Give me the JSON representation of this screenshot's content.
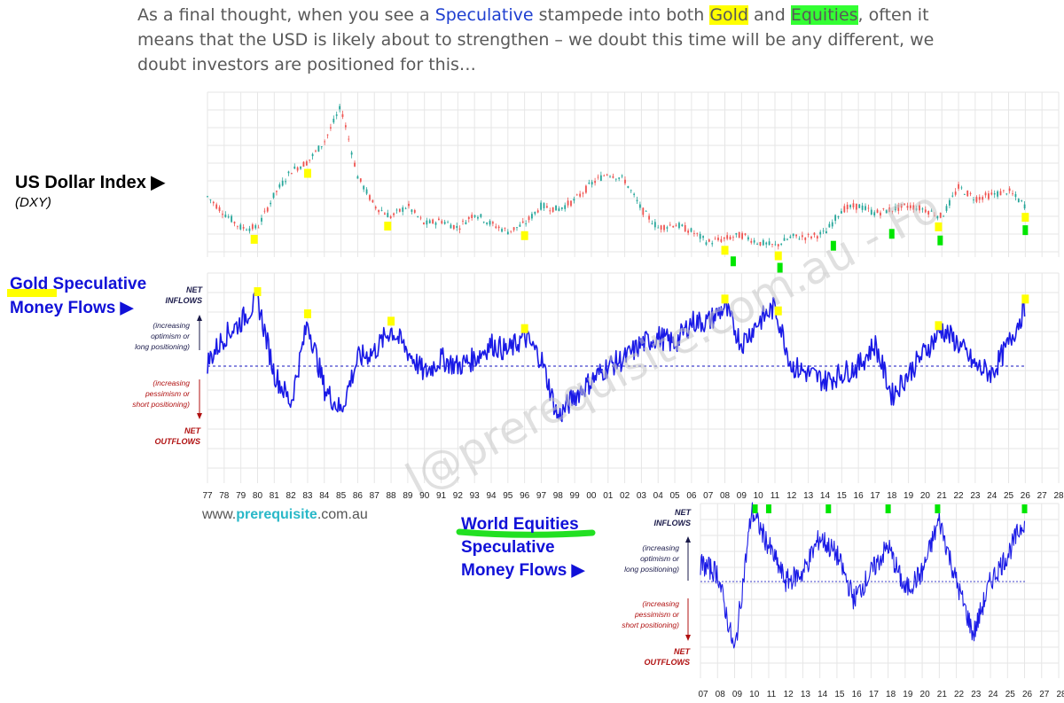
{
  "intro": {
    "t1": "As a final thought, when you see a ",
    "speculative": "Speculative",
    "t2": " stampede into both ",
    "gold": "Gold",
    "t3": " and ",
    "equities": "Equities",
    "t4": ", often it means that the USD is likely about to strengthen – we doubt this time will be any different, we doubt investors are positioned for this…"
  },
  "labels": {
    "dxy_title": "US Dollar Index ▶",
    "dxy_sub": "(DXY)",
    "gold_line1": "Gold Speculative",
    "gold_line2": "Money Flows ▶",
    "eq_line1": "World Equities",
    "eq_line2": "Speculative",
    "eq_line3": "Money Flows ▶",
    "website_pre": "www.",
    "website_bold": "prerequisite",
    "website_post": ".com.au",
    "watermark": "l@prerequisite.com.au - Fo"
  },
  "annotations": {
    "net": "NET",
    "inflows": "INFLOWS",
    "outflows": "OUTFLOWS",
    "opt1": "(increasing",
    "opt2": "optimism or",
    "opt3": "long positioning)",
    "pes1": "(increasing",
    "pes2": "pessimism or",
    "pes3": "short positioning)"
  },
  "colors": {
    "flow_line": "#1a1ae6",
    "dxy_up": "#26a69a",
    "dxy_down": "#ef5350",
    "gold_marker": "#ffff00",
    "equity_marker": "#00e600",
    "zero_line": "#4444cc"
  },
  "chart_data": [
    {
      "type": "line",
      "series_label": "US Dollar Index",
      "x": [
        1977,
        1978,
        1979,
        1980,
        1981,
        1982,
        1983,
        1984,
        1985,
        1986,
        1987,
        1988,
        1989,
        1990,
        1991,
        1992,
        1993,
        1994,
        1995,
        1996,
        1997,
        1998,
        1999,
        2000,
        2001,
        2002,
        2003,
        2004,
        2005,
        2006,
        2007,
        2008,
        2009,
        2010,
        2011,
        2012,
        2013,
        2014,
        2015,
        2016,
        2017,
        2018,
        2019,
        2020,
        2021,
        2022,
        2023,
        2024,
        2025,
        2026
      ],
      "values": [
        103,
        94,
        86,
        86,
        104,
        117,
        122,
        133,
        152,
        114,
        98,
        92,
        98,
        88,
        90,
        86,
        94,
        88,
        84,
        88,
        98,
        96,
        101,
        110,
        116,
        112,
        96,
        86,
        88,
        84,
        78,
        80,
        82,
        78,
        76,
        81,
        81,
        83,
        96,
        98,
        94,
        96,
        98,
        96,
        92,
        108,
        102,
        104,
        106,
        98
      ],
      "ylim": [
        70,
        160
      ],
      "xlim": [
        1977,
        2028
      ],
      "gold_markers": [
        1979.8,
        1983.0,
        1987.8,
        1996.0,
        2008.0,
        2011.2,
        2020.8,
        2026.0
      ],
      "equity_markers": [
        2008.5,
        2011.3,
        2014.5,
        2018.0,
        2020.9,
        2026.0
      ]
    },
    {
      "type": "line",
      "series_label": "Gold Speculative Money Flows",
      "x": [
        1977,
        1978,
        1979,
        1980,
        1981,
        1982,
        1983,
        1984,
        1985,
        1986,
        1987,
        1988,
        1989,
        1990,
        1991,
        1992,
        1993,
        1994,
        1995,
        1996,
        1997,
        1998,
        1999,
        2000,
        2001,
        2002,
        2003,
        2004,
        2005,
        2006,
        2007,
        2008,
        2009,
        2010,
        2011,
        2012,
        2013,
        2014,
        2015,
        2016,
        2017,
        2018,
        2019,
        2020,
        2021,
        2022,
        2023,
        2024,
        2025,
        2026
      ],
      "values": [
        0.5,
        4,
        6,
        9,
        -1,
        -5,
        6,
        -3,
        -6,
        1,
        2,
        5,
        2,
        -1,
        1,
        0,
        1,
        3,
        2,
        4,
        1,
        -7,
        -4,
        -2,
        0,
        1,
        3,
        4,
        3,
        6,
        6,
        8,
        3,
        6,
        8,
        0,
        -1,
        -2,
        -1,
        0,
        3,
        -4,
        -1,
        2,
        5,
        3,
        0,
        -1,
        3,
        8
      ],
      "ylim": [
        -12,
        12
      ],
      "zero_line": 0,
      "gold_markers": [
        1980.0,
        1983.0,
        1988.0,
        1996.0,
        2008.0,
        2011.2,
        2020.8,
        2026.0
      ]
    },
    {
      "type": "line",
      "series_label": "World Equities Speculative Money Flows",
      "x": [
        2007,
        2008,
        2009,
        2010,
        2011,
        2012,
        2013,
        2014,
        2015,
        2016,
        2017,
        2018,
        2019,
        2020,
        2021,
        2022,
        2023,
        2024,
        2025,
        2026
      ],
      "values": [
        2,
        1,
        -8,
        8,
        4,
        0,
        1,
        5,
        3,
        -2,
        1,
        4,
        -1,
        1,
        7,
        0,
        -6,
        0,
        3,
        7
      ],
      "ylim": [
        -9,
        9
      ],
      "zero_line": 0,
      "equity_markers": [
        2010.2,
        2011.0,
        2014.5,
        2018.0,
        2020.9,
        2026.0
      ]
    }
  ],
  "axis": {
    "main_ticks": [
      "77",
      "78",
      "79",
      "80",
      "81",
      "82",
      "83",
      "84",
      "85",
      "86",
      "87",
      "88",
      "89",
      "90",
      "91",
      "92",
      "93",
      "94",
      "95",
      "96",
      "97",
      "98",
      "99",
      "00",
      "01",
      "02",
      "03",
      "04",
      "05",
      "06",
      "07",
      "08",
      "09",
      "10",
      "11",
      "12",
      "13",
      "14",
      "15",
      "16",
      "17",
      "18",
      "19",
      "20",
      "21",
      "22",
      "23",
      "24",
      "25",
      "26",
      "27",
      "28"
    ],
    "eq_ticks": [
      "07",
      "08",
      "09",
      "10",
      "11",
      "12",
      "13",
      "14",
      "15",
      "16",
      "17",
      "18",
      "19",
      "20",
      "21",
      "22",
      "23",
      "24",
      "25",
      "26",
      "27",
      "28"
    ]
  }
}
